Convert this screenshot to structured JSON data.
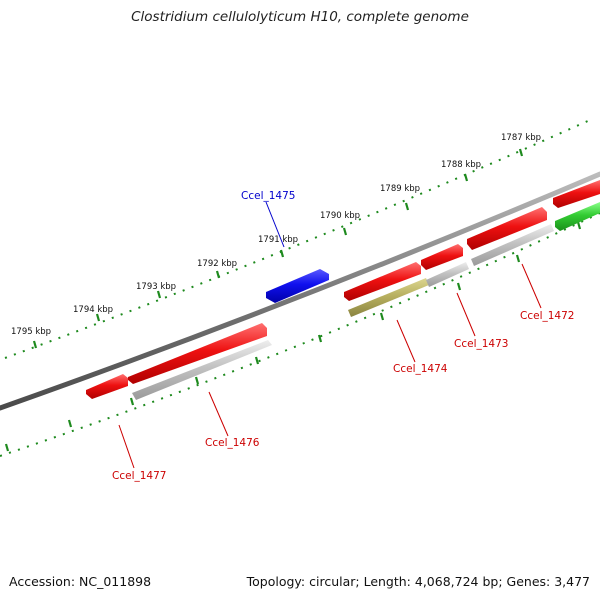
{
  "header": {
    "title": "Clostridium cellulolyticum H10, complete genome"
  },
  "footer": {
    "accession": "Accession: NC_011898",
    "topology": "Topology: circular; Length: 4,068,724 bp; Genes: 3,477"
  },
  "ruler": {
    "ticks": [
      "1787 kbp",
      "1788 kbp",
      "1789 kbp",
      "1790 kbp",
      "1791 kbp",
      "1792 kbp",
      "1793 kbp",
      "1794 kbp",
      "1795 kbp"
    ]
  },
  "genes": [
    {
      "id": "Ccel_1472",
      "label": "Ccel_1472"
    },
    {
      "id": "Ccel_1473",
      "label": "Ccel_1473"
    },
    {
      "id": "Ccel_1474",
      "label": "Ccel_1474"
    },
    {
      "id": "Ccel_1475",
      "label": "Ccel_1475"
    },
    {
      "id": "Ccel_1476",
      "label": "Ccel_1476"
    },
    {
      "id": "Ccel_1477",
      "label": "Ccel_1477"
    }
  ],
  "colors": {
    "backbone": "#7a7a7a",
    "ticks": "#1e8a1e",
    "gene_red": "#ee1111",
    "gene_blue": "#1010ee",
    "gene_green": "#33cc33",
    "gene_gray": "#c2c2c2",
    "gene_olive": "#b8b060",
    "label_red": "#cc0000",
    "label_blue": "#0000cc"
  }
}
